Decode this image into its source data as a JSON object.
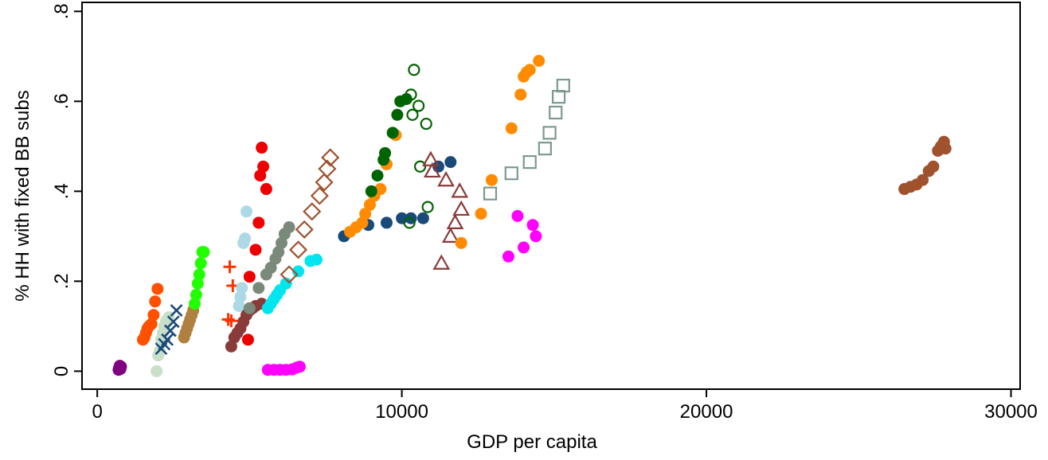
{
  "chart_data": {
    "type": "scatter",
    "title": "",
    "xlabel": "GDP per capita",
    "ylabel": "% HH with fixed BB subs",
    "xlim": [
      -500,
      30300
    ],
    "ylim": [
      -0.04,
      0.82
    ],
    "xticks": [
      {
        "value": 0,
        "label": "0"
      },
      {
        "value": 10000,
        "label": "10000"
      },
      {
        "value": 20000,
        "label": "20000"
      },
      {
        "value": 30000,
        "label": "30000"
      }
    ],
    "yticks": [
      {
        "value": 0,
        "label": "0"
      },
      {
        "value": 0.2,
        "label": ".2"
      },
      {
        "value": 0.4,
        "label": ".4"
      },
      {
        "value": 0.6,
        "label": ".6"
      },
      {
        "value": 0.8,
        "label": ".8"
      }
    ],
    "grid": false,
    "legend": "none",
    "series": [
      {
        "color": "#800080",
        "marker": "circle",
        "points": [
          [
            700,
            0.003
          ],
          [
            720,
            0.008
          ],
          [
            740,
            0.012
          ],
          [
            760,
            0.005
          ],
          [
            780,
            0.01
          ]
        ]
      },
      {
        "color": "#ff5000",
        "marker": "circle",
        "points": [
          [
            1500,
            0.07
          ],
          [
            1550,
            0.075
          ],
          [
            1600,
            0.085
          ],
          [
            1650,
            0.095
          ],
          [
            1700,
            0.1
          ],
          [
            1780,
            0.105
          ],
          [
            1850,
            0.125
          ],
          [
            1900,
            0.155
          ],
          [
            1980,
            0.183
          ]
        ]
      },
      {
        "color": "#c8e0c8",
        "marker": "circle",
        "points": [
          [
            1950,
            0.0
          ],
          [
            2000,
            0.035
          ],
          [
            2050,
            0.045
          ],
          [
            2100,
            0.07
          ],
          [
            2150,
            0.085
          ],
          [
            2200,
            0.1
          ],
          [
            2250,
            0.11
          ],
          [
            2300,
            0.115
          ],
          [
            2350,
            0.12
          ]
        ]
      },
      {
        "color": "#1a4a7a",
        "marker": "x",
        "points": [
          [
            2100,
            0.05
          ],
          [
            2200,
            0.06
          ],
          [
            2300,
            0.07
          ],
          [
            2400,
            0.09
          ],
          [
            2500,
            0.11
          ],
          [
            2600,
            0.135
          ]
        ]
      },
      {
        "color": "#b08040",
        "marker": "circle",
        "points": [
          [
            2850,
            0.075
          ],
          [
            2900,
            0.085
          ],
          [
            2950,
            0.095
          ],
          [
            3000,
            0.105
          ],
          [
            3050,
            0.115
          ],
          [
            3100,
            0.125
          ],
          [
            3150,
            0.135
          ]
        ]
      },
      {
        "color": "#22ff00",
        "marker": "circle",
        "points": [
          [
            3200,
            0.15
          ],
          [
            3250,
            0.17
          ],
          [
            3300,
            0.195
          ],
          [
            3350,
            0.215
          ],
          [
            3400,
            0.24
          ],
          [
            3450,
            0.265
          ],
          [
            3500,
            0.265
          ]
        ]
      },
      {
        "color": "#ff3300",
        "marker": "plus",
        "points": [
          [
            4300,
            0.115
          ],
          [
            4350,
            0.232
          ],
          [
            4400,
            0.112
          ],
          [
            4450,
            0.19
          ]
        ]
      },
      {
        "color": "#add8e6",
        "marker": "circle",
        "points": [
          [
            4650,
            0.145
          ],
          [
            4700,
            0.165
          ],
          [
            4750,
            0.185
          ],
          [
            4800,
            0.285
          ],
          [
            4850,
            0.295
          ],
          [
            4900,
            0.355
          ]
        ]
      },
      {
        "color": "#ee0000",
        "marker": "circle",
        "points": [
          [
            4950,
            0.07
          ],
          [
            5000,
            0.21
          ],
          [
            5200,
            0.27
          ],
          [
            5300,
            0.33
          ],
          [
            5350,
            0.435
          ],
          [
            5400,
            0.497
          ],
          [
            5450,
            0.455
          ],
          [
            5550,
            0.405
          ]
        ]
      },
      {
        "color": "#8b3a3a",
        "marker": "circle",
        "points": [
          [
            4400,
            0.055
          ],
          [
            4500,
            0.075
          ],
          [
            4600,
            0.085
          ],
          [
            4700,
            0.095
          ],
          [
            4800,
            0.11
          ],
          [
            4900,
            0.125
          ],
          [
            5000,
            0.135
          ],
          [
            5100,
            0.14
          ],
          [
            5200,
            0.145
          ],
          [
            5400,
            0.15
          ]
        ]
      },
      {
        "color": "#7a8a7a",
        "marker": "circle",
        "points": [
          [
            5000,
            0.14
          ],
          [
            5300,
            0.185
          ],
          [
            5550,
            0.215
          ],
          [
            5700,
            0.23
          ],
          [
            5850,
            0.25
          ],
          [
            5950,
            0.265
          ],
          [
            6050,
            0.285
          ],
          [
            6150,
            0.305
          ],
          [
            6300,
            0.32
          ]
        ]
      },
      {
        "color": "#00e5ee",
        "marker": "circle",
        "points": [
          [
            5600,
            0.14
          ],
          [
            5700,
            0.15
          ],
          [
            5800,
            0.16
          ],
          [
            5900,
            0.17
          ],
          [
            6000,
            0.18
          ],
          [
            6200,
            0.195
          ],
          [
            6600,
            0.222
          ],
          [
            7000,
            0.245
          ],
          [
            7200,
            0.248
          ]
        ]
      },
      {
        "color": "#ff00ff",
        "marker": "circle",
        "points": [
          [
            5600,
            0.003
          ],
          [
            5800,
            0.003
          ],
          [
            6000,
            0.003
          ],
          [
            6200,
            0.003
          ],
          [
            6400,
            0.004
          ],
          [
            6550,
            0.008
          ],
          [
            6650,
            0.01
          ]
        ]
      },
      {
        "color": "#a0522d",
        "marker": "diamond",
        "points": [
          [
            6300,
            0.215
          ],
          [
            6600,
            0.27
          ],
          [
            6800,
            0.315
          ],
          [
            7050,
            0.355
          ],
          [
            7300,
            0.39
          ],
          [
            7450,
            0.42
          ],
          [
            7550,
            0.45
          ],
          [
            7650,
            0.475
          ]
        ]
      },
      {
        "color": "#1a4a7a",
        "marker": "circle",
        "points": [
          [
            8100,
            0.3
          ],
          [
            8900,
            0.325
          ],
          [
            9500,
            0.33
          ],
          [
            10000,
            0.34
          ],
          [
            10300,
            0.34
          ],
          [
            10700,
            0.34
          ],
          [
            11200,
            0.455
          ],
          [
            11600,
            0.465
          ]
        ]
      },
      {
        "color": "#ff8c00",
        "marker": "circle",
        "points": [
          [
            8300,
            0.31
          ],
          [
            8500,
            0.32
          ],
          [
            8700,
            0.33
          ],
          [
            8800,
            0.35
          ],
          [
            8950,
            0.37
          ],
          [
            9100,
            0.39
          ],
          [
            9300,
            0.405
          ],
          [
            9500,
            0.46
          ],
          [
            9800,
            0.525
          ]
        ]
      },
      {
        "color": "#006400",
        "marker": "circle",
        "points": [
          [
            9000,
            0.4
          ],
          [
            9200,
            0.435
          ],
          [
            9400,
            0.47
          ],
          [
            9450,
            0.485
          ],
          [
            9700,
            0.53
          ],
          [
            9850,
            0.57
          ],
          [
            9950,
            0.6
          ],
          [
            10150,
            0.605
          ]
        ]
      },
      {
        "color": "#006400",
        "marker": "circle-hollow",
        "points": [
          [
            10250,
            0.33
          ],
          [
            10300,
            0.615
          ],
          [
            10350,
            0.57
          ],
          [
            10400,
            0.67
          ],
          [
            10550,
            0.59
          ],
          [
            10600,
            0.455
          ],
          [
            10800,
            0.55
          ],
          [
            10850,
            0.365
          ]
        ]
      },
      {
        "color": "#8b3a3a",
        "marker": "triangle-hollow",
        "points": [
          [
            10950,
            0.47
          ],
          [
            11000,
            0.445
          ],
          [
            11300,
            0.24
          ],
          [
            11450,
            0.425
          ],
          [
            11600,
            0.3
          ],
          [
            11750,
            0.33
          ],
          [
            11900,
            0.4
          ],
          [
            11950,
            0.36
          ]
        ]
      },
      {
        "color": "#ff8c00",
        "marker": "circle",
        "points": [
          [
            11950,
            0.285
          ],
          [
            12600,
            0.35
          ],
          [
            12950,
            0.425
          ],
          [
            13600,
            0.54
          ],
          [
            13900,
            0.615
          ],
          [
            14000,
            0.655
          ],
          [
            14100,
            0.665
          ],
          [
            14200,
            0.67
          ],
          [
            14500,
            0.69
          ]
        ]
      },
      {
        "color": "#7a9a90",
        "marker": "square-hollow",
        "points": [
          [
            12900,
            0.395
          ],
          [
            13600,
            0.44
          ],
          [
            14200,
            0.465
          ],
          [
            14700,
            0.495
          ],
          [
            14850,
            0.53
          ],
          [
            15050,
            0.575
          ],
          [
            15150,
            0.61
          ],
          [
            15300,
            0.635
          ]
        ]
      },
      {
        "color": "#ff00ff",
        "marker": "circle",
        "points": [
          [
            13500,
            0.255
          ],
          [
            13800,
            0.345
          ],
          [
            14000,
            0.275
          ],
          [
            14300,
            0.325
          ],
          [
            14400,
            0.3
          ]
        ]
      },
      {
        "color": "#a0522d",
        "marker": "circle",
        "points": [
          [
            26500,
            0.405
          ],
          [
            26700,
            0.41
          ],
          [
            26900,
            0.415
          ],
          [
            27100,
            0.425
          ],
          [
            27300,
            0.445
          ],
          [
            27450,
            0.455
          ],
          [
            27600,
            0.49
          ],
          [
            27700,
            0.5
          ],
          [
            27800,
            0.51
          ],
          [
            27850,
            0.495
          ]
        ]
      }
    ]
  }
}
